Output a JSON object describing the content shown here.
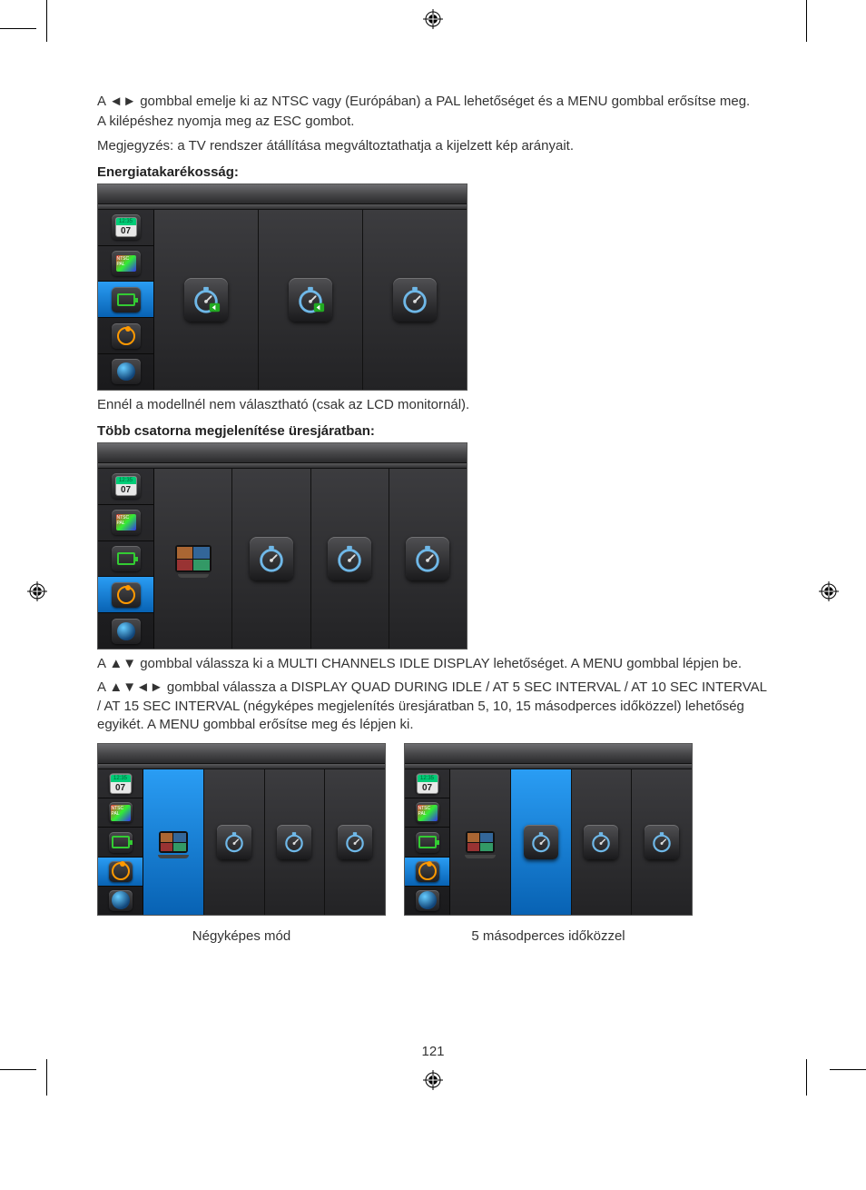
{
  "page_number": "121",
  "registration_mark_color": "#000000",
  "text": {
    "p1": "A ◄► gombbal emelje ki az NTSC vagy (Európában) a PAL lehetőséget és a MENU gombbal erősítse meg.",
    "p2": "A kilépéshez nyomja meg az ESC gombot.",
    "p3": "Megjegyzés: a TV rendszer átállítása megváltoztathatja a kijelzett kép arányait.",
    "h1": "Energiatakarékosság:",
    "p4": "Ennél a modellnél nem választható (csak az LCD monitornál).",
    "h2": "Több csatorna megjelenítése üresjáratban:",
    "p5": "A ▲▼ gombbal válassza ki a MULTI CHANNELS IDLE DISPLAY lehetőséget. A MENU gombbal lépjen be.",
    "p6": "A ▲▼◄► gombbal válassza a DISPLAY QUAD DURING IDLE / AT 5 SEC INTERVAL / AT 10 SEC INTERVAL / AT 15 SEC INTERVAL (négyképes megjelenítés üresjáratban 5, 10, 15 másodperces időközzel) lehetőség egyikét. A MENU gombbal erősítse meg és lépjen ki.",
    "cap1": "Négyképes mód",
    "cap2": "5 másodperces időközzel"
  },
  "sidebar_icons": [
    {
      "name": "calendar-icon",
      "time": "12:35",
      "day": "07"
    },
    {
      "name": "ntsc-pal-icon",
      "label": "NTSC\\nPAL"
    },
    {
      "name": "battery-icon"
    },
    {
      "name": "orbit-icon"
    },
    {
      "name": "globe-icon"
    }
  ],
  "colors": {
    "selected_bg_start": "#2a9df4",
    "selected_bg_end": "#0862b3",
    "panel_bg_start": "#3c3c3f",
    "panel_bg_end": "#232325",
    "tile_bg_start": "#505053",
    "tile_bg_end": "#1a1a1c",
    "topbar_start": "#6d6d70",
    "topbar_end": "#2a2a2c",
    "timer_ring": "#6fb8e8",
    "timer_accent_green": "#5fcf5f",
    "timer_hand": "#dddddd"
  },
  "screenshot1": {
    "selected_sidebar_index": 2,
    "options": [
      {
        "type": "timer",
        "badge": "green-arrow"
      },
      {
        "type": "timer",
        "badge": "green-arrow"
      },
      {
        "type": "timer",
        "badge": "none"
      }
    ]
  },
  "screenshot2": {
    "selected_sidebar_index": 3,
    "options": [
      {
        "type": "quad"
      },
      {
        "type": "timer"
      },
      {
        "type": "timer"
      },
      {
        "type": "timer"
      }
    ]
  },
  "screenshot3": {
    "selected_sidebar_index": 3,
    "selected_option_index": 0,
    "options": [
      {
        "type": "quad"
      },
      {
        "type": "timer"
      },
      {
        "type": "timer"
      },
      {
        "type": "timer"
      }
    ]
  },
  "screenshot4": {
    "selected_sidebar_index": 3,
    "selected_option_index": 1,
    "options": [
      {
        "type": "quad"
      },
      {
        "type": "timer"
      },
      {
        "type": "timer"
      },
      {
        "type": "timer"
      }
    ]
  }
}
